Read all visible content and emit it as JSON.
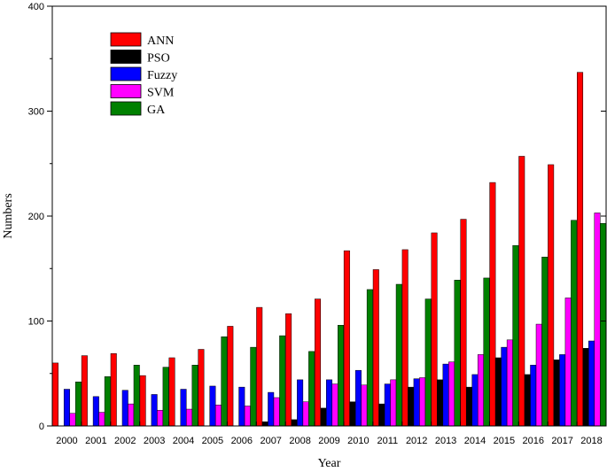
{
  "chart_data": {
    "type": "bar",
    "xlabel": "Year",
    "ylabel": "Numbers",
    "ylim": [
      0,
      400
    ],
    "yticks": [
      "0",
      "100",
      "200",
      "300",
      "400"
    ],
    "grid": false,
    "legend_position": "top-left",
    "categories": [
      "2000",
      "2001",
      "2002",
      "2003",
      "2004",
      "2005",
      "2006",
      "2007",
      "2008",
      "2009",
      "2010",
      "2011",
      "2012",
      "2013",
      "2014",
      "2015",
      "2016",
      "2017",
      "2018"
    ],
    "series": [
      {
        "name": "ANN",
        "color": "#ff0000",
        "values": [
          60,
          67,
          69,
          48,
          65,
          73,
          95,
          113,
          107,
          121,
          167,
          149,
          168,
          184,
          197,
          232,
          257,
          249,
          337
        ]
      },
      {
        "name": "PSO",
        "color": "#000000",
        "values": [
          0,
          0,
          0,
          0,
          0,
          0,
          0,
          4,
          6,
          17,
          23,
          21,
          37,
          44,
          37,
          65,
          49,
          63,
          74
        ]
      },
      {
        "name": "Fuzzy",
        "color": "#0000ff",
        "values": [
          35,
          28,
          34,
          30,
          35,
          38,
          37,
          32,
          44,
          44,
          53,
          40,
          45,
          59,
          49,
          75,
          58,
          68,
          81
        ]
      },
      {
        "name": "SVM",
        "color": "#ff00ff",
        "values": [
          12,
          13,
          21,
          15,
          16,
          20,
          19,
          27,
          23,
          40,
          39,
          44,
          46,
          61,
          68,
          82,
          97,
          122,
          203
        ]
      },
      {
        "name": "GA",
        "color": "#008000",
        "values": [
          42,
          47,
          58,
          56,
          58,
          85,
          75,
          86,
          71,
          96,
          130,
          135,
          121,
          139,
          141,
          172,
          161,
          196,
          193
        ]
      }
    ]
  }
}
